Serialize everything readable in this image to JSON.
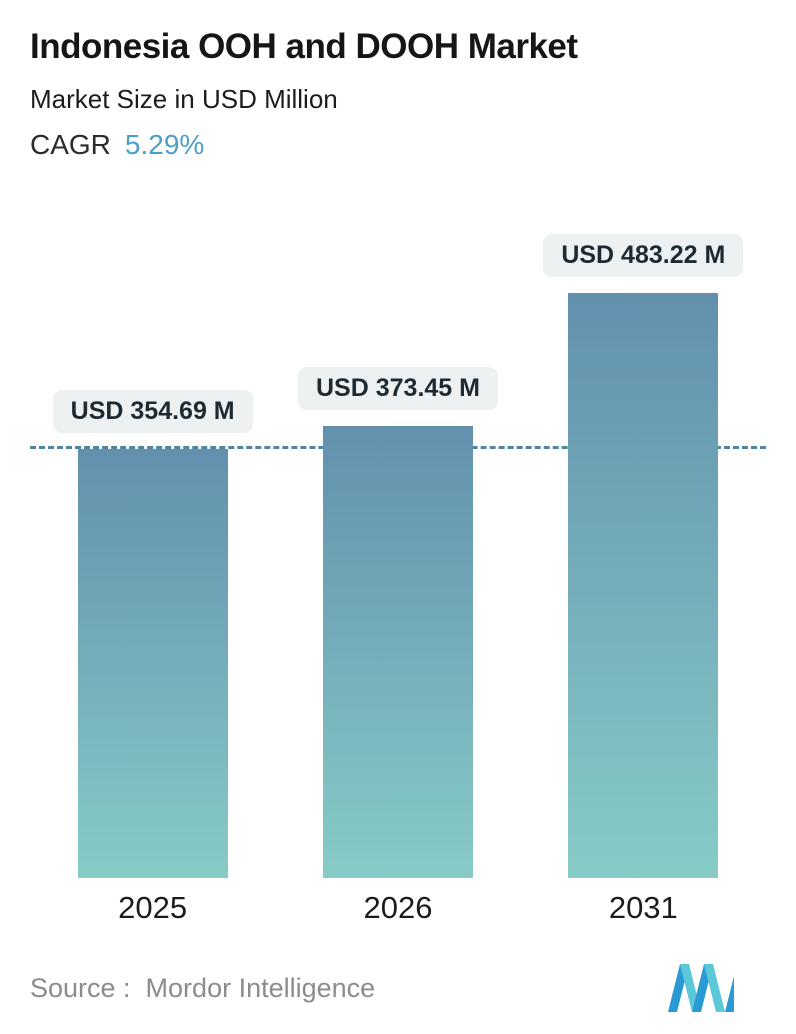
{
  "header": {
    "title": "Indonesia OOH and DOOH Market",
    "subtitle": "Market Size in USD Million",
    "cagr_label": "CAGR",
    "cagr_value": "5.29%"
  },
  "colors": {
    "cagr_accent": "#4d9fc7",
    "bar_gradient_top": "#6290ad",
    "bar_gradient_bottom": "#87cbc7",
    "dashed_line": "#4e86a0",
    "pill_background": "#edf1f1"
  },
  "chart_data": {
    "type": "bar",
    "title": "Indonesia OOH and DOOH Market",
    "ylabel": "Market Size in USD Million",
    "categories": [
      "2025",
      "2026",
      "2031"
    ],
    "values": [
      354.69,
      373.45,
      483.22
    ],
    "value_labels": [
      "USD 354.69 M",
      "USD 373.45 M",
      "USD 483.22 M"
    ],
    "reference_line_value": 354.69,
    "ylim": [
      0,
      483.22
    ],
    "grid": false,
    "legend": false
  },
  "footer": {
    "source_label": "Source :  Mordor Intelligence",
    "logo_name": "mordor-intelligence-logo"
  }
}
